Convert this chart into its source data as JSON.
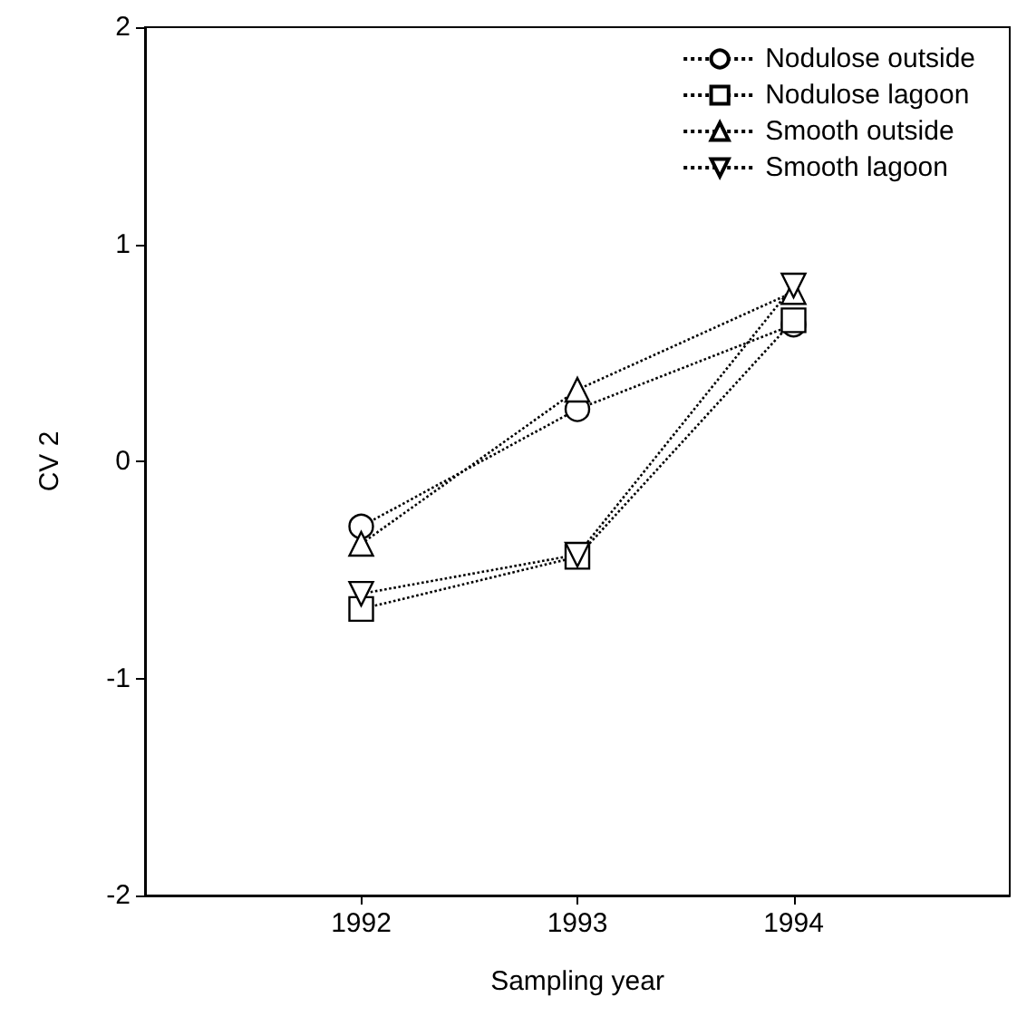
{
  "chart_data": {
    "type": "line",
    "xlabel": "Sampling year",
    "ylabel": "CV 2",
    "x": [
      1992,
      1993,
      1994
    ],
    "xlim": [
      1991,
      1995
    ],
    "xticks": [
      1992,
      1993,
      1994
    ],
    "ylim": [
      -2,
      2
    ],
    "yticks": [
      -2,
      -1,
      0,
      1,
      2
    ],
    "grid": false,
    "legend": "top right",
    "line_style": "dotted",
    "series": [
      {
        "name": "Nodulose outside",
        "color": "#000000",
        "marker": "circle",
        "values": [
          -0.3,
          0.24,
          0.63
        ]
      },
      {
        "name": "Nodulose lagoon",
        "color": "#000000",
        "marker": "square",
        "values": [
          -0.68,
          -0.44,
          0.65
        ]
      },
      {
        "name": "Smooth outside",
        "color": "#000000",
        "marker": "triangle",
        "values": [
          -0.38,
          0.33,
          0.78
        ]
      },
      {
        "name": "Smooth lagoon",
        "color": "#000000",
        "marker": "triangle-down",
        "values": [
          -0.61,
          -0.43,
          0.81
        ]
      }
    ]
  }
}
